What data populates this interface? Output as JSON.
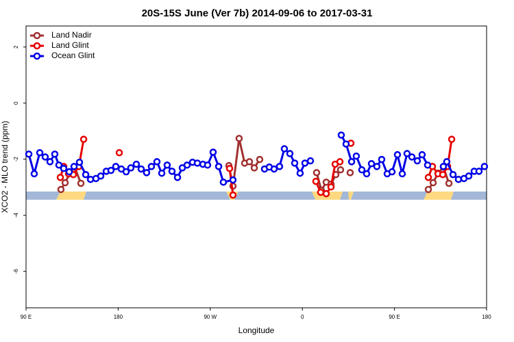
{
  "chart_data": {
    "type": "line",
    "title": "20S-15S June (Ver 7b)   2014-09-06 to 2017-03-31",
    "x_label": "Longitude",
    "y_label": "XCO2 - MLO trend (ppm)",
    "xlim": [
      90,
      540
    ],
    "ylim": [
      -7.3,
      2.75
    ],
    "xticks": [
      {
        "value": 90,
        "label": "90 E"
      },
      {
        "value": 180,
        "label": "180"
      },
      {
        "value": 270,
        "label": "90 W"
      },
      {
        "value": 360,
        "label": "0"
      },
      {
        "value": 450,
        "label": "90 E"
      },
      {
        "value": 540,
        "label": "180"
      }
    ],
    "yticks": [
      2,
      0,
      -2,
      -4,
      -6
    ],
    "legend": "top-left",
    "series": [
      {
        "name": "Land Nadir",
        "color": "#a0302f",
        "x": [
          124.1,
          128.2,
          132.9,
          137.5,
          143.6,
          null,
          288.2,
          292.2,
          298.2,
          303.6,
          308.3,
          313.0,
          318.3,
          null,
          373.9,
          378.6,
          383.3,
          388.0,
          392.7,
          397.3,
          null,
          406.7,
          null,
          483.1,
          487.8,
          492.5,
          497.8,
          503.2
        ],
        "values": [
          -3.08,
          -2.84,
          -2.5,
          -2.28,
          -2.86,
          null,
          -2.23,
          -2.96,
          -1.26,
          -2.14,
          -2.09,
          -2.31,
          -2.01,
          null,
          -2.48,
          -3.11,
          -2.82,
          -2.89,
          -2.55,
          -2.38,
          null,
          -2.48,
          null,
          -3.08,
          -2.84,
          -2.5,
          -2.28,
          -2.86
        ]
      },
      {
        "name": "Land Glint",
        "color": "#e60000",
        "x": [
          123.5,
          126.8,
          131.5,
          136.2,
          141.6,
          146.3,
          null,
          181.1,
          null,
          288.9,
          292.2,
          null,
          373.2,
          377.9,
          383.3,
          388.0,
          392.0,
          396.7,
          null,
          407.4,
          null,
          483.1,
          487.1,
          492.5,
          497.2,
          501.9,
          505.9
        ],
        "values": [
          -2.65,
          -2.26,
          -2.52,
          -2.55,
          -2.26,
          -1.29,
          null,
          -1.77,
          null,
          -2.33,
          -3.28,
          null,
          -2.79,
          -3.18,
          -3.23,
          -2.99,
          -2.18,
          -2.09,
          null,
          -1.43,
          null,
          -2.65,
          -2.26,
          -2.52,
          -2.55,
          -2.26,
          -1.29
        ]
      },
      {
        "name": "Ocean Glint",
        "color": "#0000e6",
        "x": [
          92.7,
          98.0,
          103.4,
          108.7,
          113.4,
          118.1,
          122.1,
          126.8,
          132.2,
          136.9,
          142.2,
          148.3,
          153.0,
          158.3,
          163.0,
          168.4,
          173.0,
          177.7,
          183.1,
          187.8,
          192.4,
          197.8,
          202.5,
          207.8,
          212.5,
          217.9,
          222.6,
          227.9,
          232.6,
          238.0,
          242.7,
          247.4,
          252.7,
          257.4,
          262.8,
          267.4,
          272.8,
          278.2,
          282.8,
          292.2,
          null,
          323.0,
          327.7,
          332.4,
          337.7,
          342.4,
          347.8,
          352.5,
          357.8,
          362.5,
          367.9,
          null,
          398.0,
          402.7,
          408.1,
          412.7,
          418.1,
          422.8,
          427.5,
          432.8,
          437.5,
          442.9,
          447.6,
          452.9,
          457.6,
          462.3,
          467.0,
          472.3,
          477.0,
          482.4,
          null,
          497.8,
          501.1,
          507.2,
          512.5,
          517.9,
          522.6,
          527.9,
          532.6,
          537.9
        ],
        "values": [
          -1.82,
          -2.52,
          -1.77,
          -1.92,
          -2.09,
          -1.82,
          -2.21,
          -2.33,
          -2.45,
          -2.26,
          -2.11,
          -2.55,
          -2.72,
          -2.69,
          -2.6,
          -2.43,
          -2.4,
          -2.26,
          -2.35,
          -2.45,
          -2.31,
          -2.18,
          -2.35,
          -2.48,
          -2.26,
          -2.09,
          -2.5,
          -2.21,
          -2.43,
          -2.65,
          -2.31,
          -2.21,
          -2.11,
          -2.14,
          -2.18,
          -2.21,
          -1.75,
          -2.26,
          -2.82,
          -2.74,
          null,
          -2.35,
          -2.28,
          -2.35,
          -2.26,
          -1.63,
          -1.8,
          -2.14,
          -2.5,
          -2.14,
          -2.06,
          null,
          -1.14,
          -1.46,
          -2.09,
          -1.89,
          -2.38,
          -2.52,
          -2.16,
          -2.26,
          -2.01,
          -2.52,
          -2.45,
          -1.84,
          -2.52,
          -1.8,
          -1.92,
          -2.06,
          -1.84,
          -2.21,
          null,
          -2.26,
          -2.09,
          -2.55,
          -2.72,
          -2.69,
          -2.6,
          -2.43,
          -2.43,
          -2.26
        ]
      }
    ]
  }
}
